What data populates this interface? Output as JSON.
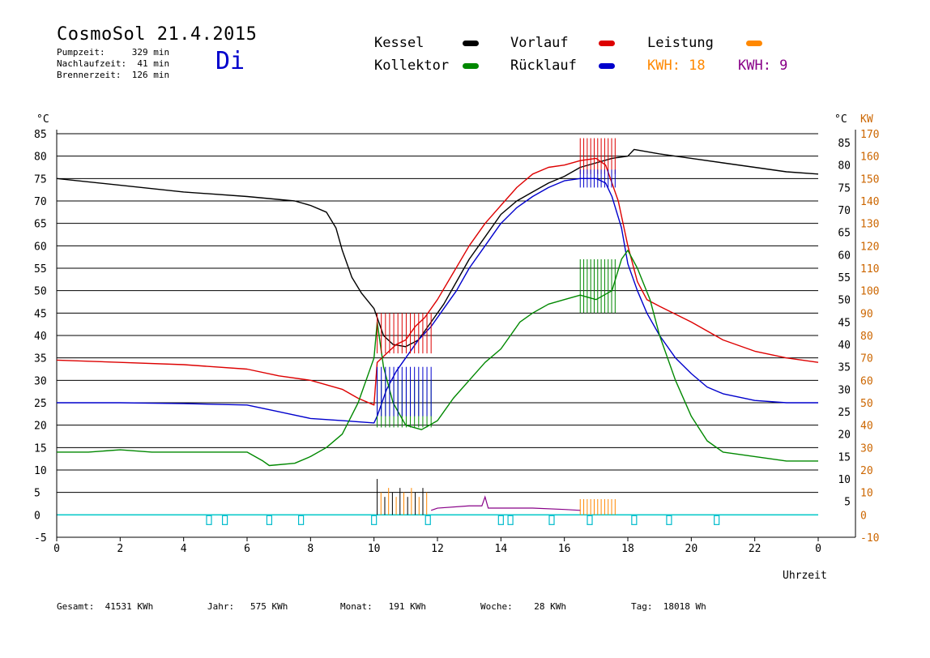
{
  "header": {
    "title": "CosmoSol 21.4.2015",
    "day": "Di",
    "info": [
      "Pumpzeit:     329 min",
      "Nachlaufzeit:  41 min",
      "Brennerzeit:  126 min"
    ]
  },
  "legend": {
    "kessel": {
      "label": "Kessel",
      "color": "#000000"
    },
    "vorlauf": {
      "label": "Vorlauf",
      "color": "#dd0000"
    },
    "leistung": {
      "label": "Leistung",
      "color": "#ff8800"
    },
    "kollektor": {
      "label": "Kollektor",
      "color": "#008800"
    },
    "ruecklauf": {
      "label": "Rücklauf",
      "color": "#0000cc"
    },
    "kwh1": {
      "label": "KWH: 18",
      "color": "#ff8800"
    },
    "kwh2": {
      "label": "KWH: 9",
      "color": "#880088"
    }
  },
  "footer": {
    "gesamt": "Gesamt:  41531 KWh",
    "jahr": "Jahr:   575 KWh",
    "monat": "Monat:   191 KWh",
    "woche": "Woche:    28 KWh",
    "tag": "Tag:  18018 Wh"
  },
  "chart_data": {
    "type": "line",
    "xlabel": "Uhrzeit",
    "ylabel_left": "°C",
    "ylabel_right_1": "°C",
    "ylabel_right_2": "KW",
    "xlim": [
      0,
      24
    ],
    "ylim": [
      -5,
      85
    ],
    "x_ticks": [
      "0",
      "2",
      "4",
      "6",
      "8",
      "10",
      "12",
      "14",
      "16",
      "18",
      "20",
      "22",
      "0"
    ],
    "y_ticks_left": [
      "-5",
      "0",
      "5",
      "10",
      "15",
      "20",
      "25",
      "30",
      "35",
      "40",
      "45",
      "50",
      "55",
      "60",
      "65",
      "70",
      "75",
      "80",
      "85"
    ],
    "y_ticks_right": [
      "5",
      "10",
      "15",
      "20",
      "25",
      "30",
      "35",
      "40",
      "45",
      "50",
      "55",
      "60",
      "65",
      "70",
      "75",
      "80",
      "85"
    ],
    "y_ticks_kw": [
      "-10",
      "0",
      "10",
      "20",
      "30",
      "40",
      "50",
      "60",
      "70",
      "80",
      "90",
      "100",
      "110",
      "120",
      "130",
      "140",
      "150",
      "160",
      "170"
    ],
    "grid": "horizontal",
    "series": [
      {
        "name": "Kessel",
        "color": "#000000",
        "points": [
          [
            0,
            75
          ],
          [
            2,
            73.5
          ],
          [
            4,
            72
          ],
          [
            6,
            71
          ],
          [
            7.5,
            70
          ],
          [
            8,
            69
          ],
          [
            8.5,
            67.5
          ],
          [
            8.8,
            64
          ],
          [
            9,
            59
          ],
          [
            9.3,
            53
          ],
          [
            9.6,
            49.5
          ],
          [
            10,
            46
          ],
          [
            10.1,
            44
          ],
          [
            10.3,
            40
          ],
          [
            10.6,
            38
          ],
          [
            11,
            37.5
          ],
          [
            11.4,
            39
          ],
          [
            11.8,
            43
          ],
          [
            12.2,
            47
          ],
          [
            12.6,
            52
          ],
          [
            13,
            57
          ],
          [
            13.5,
            62
          ],
          [
            14,
            67
          ],
          [
            14.5,
            70
          ],
          [
            15,
            72
          ],
          [
            15.5,
            74
          ],
          [
            16,
            75.5
          ],
          [
            16.5,
            77.5
          ],
          [
            17,
            78.5
          ],
          [
            17.5,
            79.5
          ],
          [
            18,
            80
          ],
          [
            18.2,
            81.5
          ],
          [
            19,
            80.5
          ],
          [
            20,
            79.5
          ],
          [
            21,
            78.5
          ],
          [
            22,
            77.5
          ],
          [
            23,
            76.5
          ],
          [
            24,
            76
          ]
        ]
      },
      {
        "name": "Vorlauf",
        "color": "#dd0000",
        "points": [
          [
            0,
            34.5
          ],
          [
            2,
            34
          ],
          [
            4,
            33.5
          ],
          [
            6,
            32.5
          ],
          [
            7,
            31
          ],
          [
            8,
            30
          ],
          [
            9,
            28
          ],
          [
            9.5,
            26
          ],
          [
            10,
            24.5
          ],
          [
            10.1,
            34
          ],
          [
            10.4,
            36
          ],
          [
            10.7,
            38
          ],
          [
            11,
            39
          ],
          [
            11.3,
            42
          ],
          [
            11.6,
            44
          ],
          [
            12,
            48
          ],
          [
            12.5,
            54
          ],
          [
            13,
            60
          ],
          [
            13.5,
            65
          ],
          [
            14,
            69
          ],
          [
            14.5,
            73
          ],
          [
            15,
            76
          ],
          [
            15.5,
            77.5
          ],
          [
            16,
            78
          ],
          [
            16.5,
            79
          ],
          [
            17,
            79.5
          ],
          [
            17.3,
            78
          ],
          [
            17.5,
            74
          ],
          [
            17.7,
            70
          ],
          [
            18,
            60
          ],
          [
            18.3,
            52
          ],
          [
            18.6,
            48
          ],
          [
            19,
            46.5
          ],
          [
            20,
            43
          ],
          [
            21,
            39
          ],
          [
            22,
            36.5
          ],
          [
            23,
            35
          ],
          [
            24,
            34
          ]
        ]
      },
      {
        "name": "Rücklauf",
        "color": "#0000cc",
        "points": [
          [
            0,
            25
          ],
          [
            2,
            25
          ],
          [
            4,
            24.8
          ],
          [
            6,
            24.5
          ],
          [
            7,
            23
          ],
          [
            8,
            21.5
          ],
          [
            9,
            21
          ],
          [
            10,
            20.5
          ],
          [
            10.1,
            22
          ],
          [
            10.4,
            28
          ],
          [
            10.7,
            32
          ],
          [
            11,
            35
          ],
          [
            11.4,
            39
          ],
          [
            11.8,
            42
          ],
          [
            12.2,
            46
          ],
          [
            12.6,
            50
          ],
          [
            13,
            55
          ],
          [
            13.5,
            60
          ],
          [
            14,
            65
          ],
          [
            14.5,
            68.5
          ],
          [
            15,
            71
          ],
          [
            15.5,
            73
          ],
          [
            16,
            74.5
          ],
          [
            16.5,
            75
          ],
          [
            17,
            75
          ],
          [
            17.3,
            74
          ],
          [
            17.5,
            71
          ],
          [
            17.8,
            64
          ],
          [
            18,
            56
          ],
          [
            18.3,
            50
          ],
          [
            18.6,
            45
          ],
          [
            19,
            40
          ],
          [
            19.5,
            35
          ],
          [
            20,
            31.5
          ],
          [
            20.5,
            28.5
          ],
          [
            21,
            27
          ],
          [
            22,
            25.5
          ],
          [
            23,
            25
          ],
          [
            24,
            25
          ]
        ]
      },
      {
        "name": "Kollektor",
        "color": "#008800",
        "points": [
          [
            0,
            14
          ],
          [
            1,
            14
          ],
          [
            2,
            14.5
          ],
          [
            3,
            14
          ],
          [
            4,
            14
          ],
          [
            5,
            14
          ],
          [
            6,
            14
          ],
          [
            6.5,
            12
          ],
          [
            6.7,
            11
          ],
          [
            7.5,
            11.5
          ],
          [
            8,
            13
          ],
          [
            8.5,
            15
          ],
          [
            9,
            18
          ],
          [
            9.5,
            25
          ],
          [
            10,
            35
          ],
          [
            10.1,
            43
          ],
          [
            10.3,
            33
          ],
          [
            10.6,
            25
          ],
          [
            11,
            20
          ],
          [
            11.5,
            19
          ],
          [
            12,
            21
          ],
          [
            12.5,
            26
          ],
          [
            13,
            30
          ],
          [
            13.5,
            34
          ],
          [
            14,
            37
          ],
          [
            14.3,
            40
          ],
          [
            14.6,
            43
          ],
          [
            15,
            45
          ],
          [
            15.5,
            47
          ],
          [
            16,
            48
          ],
          [
            16.5,
            49
          ],
          [
            17,
            48
          ],
          [
            17.5,
            50
          ],
          [
            17.8,
            57
          ],
          [
            18,
            59
          ],
          [
            18.3,
            55
          ],
          [
            18.7,
            48
          ],
          [
            19,
            40
          ],
          [
            19.5,
            30
          ],
          [
            20,
            22
          ],
          [
            20.5,
            16.5
          ],
          [
            21,
            14
          ],
          [
            22,
            13
          ],
          [
            23,
            12
          ],
          [
            24,
            12
          ]
        ]
      }
    ]
  }
}
